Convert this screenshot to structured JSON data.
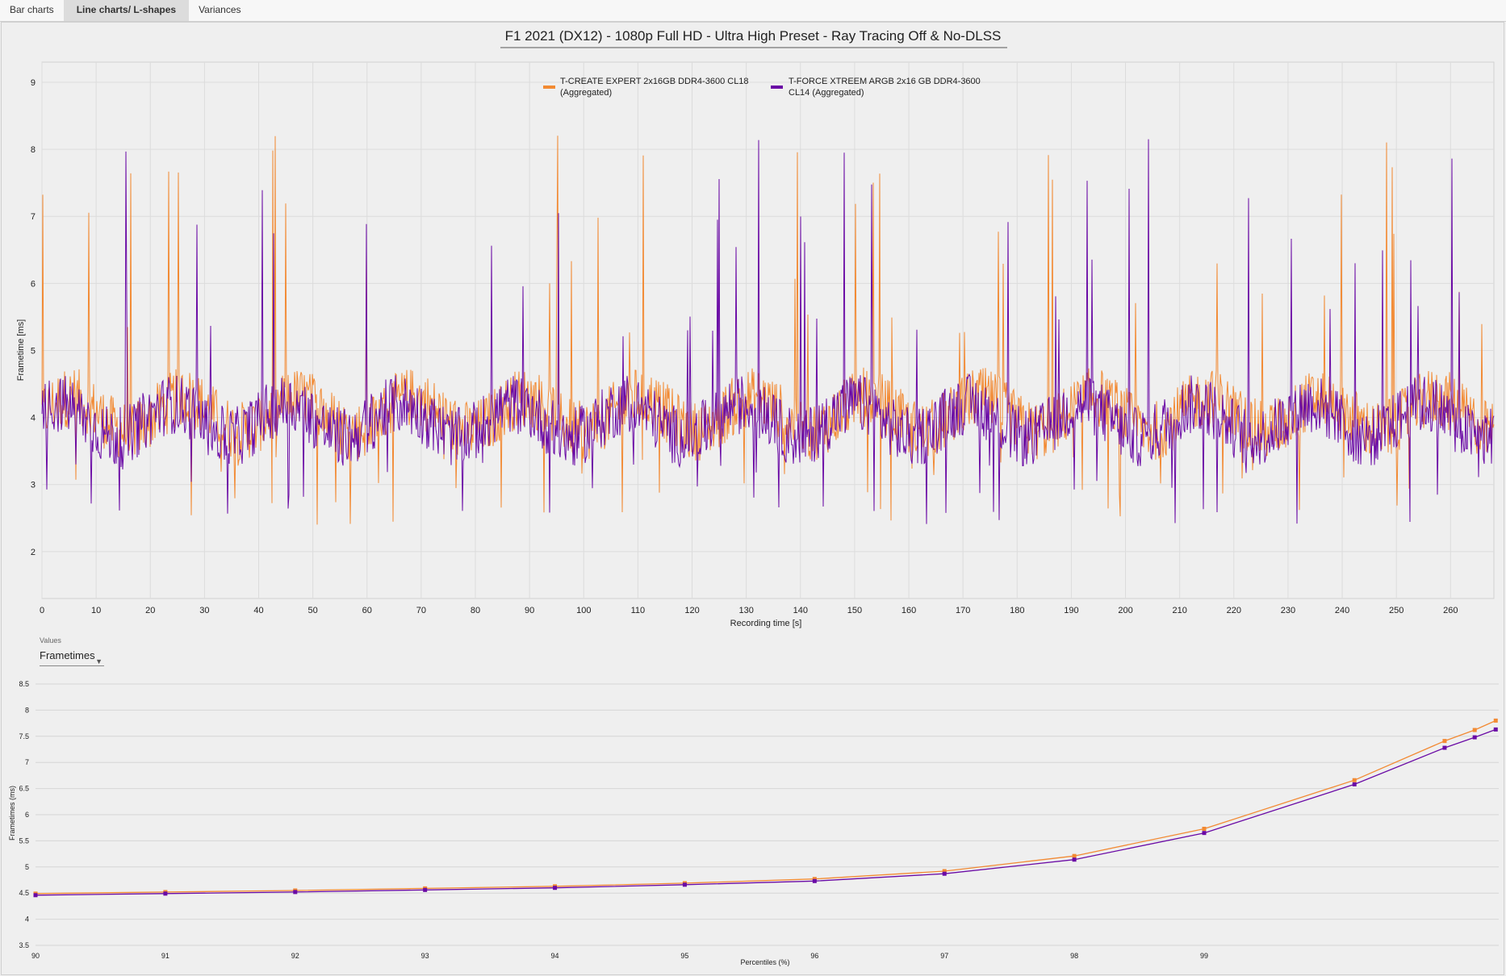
{
  "tabs": [
    {
      "label": "Bar charts",
      "active": false
    },
    {
      "label": "Line charts/ L-shapes",
      "active": true
    },
    {
      "label": "Variances",
      "active": false
    }
  ],
  "values_selector": {
    "label": "Values",
    "selected": "Frametimes"
  },
  "colors": {
    "series_a": "#f28a33",
    "series_b": "#6a0aa5",
    "grid": "#d9d9d9",
    "background": "#efefef"
  },
  "chart_data": [
    {
      "type": "line",
      "title": "F1 2021 (DX12) - 1080p Full HD - Ultra High Preset - Ray Tracing Off & No-DLSS",
      "xlabel": "Recording time [s]",
      "ylabel": "Frametime [ms]",
      "xlim": [
        0,
        268
      ],
      "ylim": [
        1.3,
        9.3
      ],
      "x_ticks": [
        0,
        10,
        20,
        30,
        40,
        50,
        60,
        70,
        80,
        90,
        100,
        110,
        120,
        130,
        140,
        150,
        160,
        170,
        180,
        190,
        200,
        210,
        220,
        230,
        240,
        250,
        260
      ],
      "y_ticks": [
        2,
        3,
        4,
        5,
        6,
        7,
        8,
        9
      ],
      "grid": true,
      "legend_position": "top-center",
      "series": [
        {
          "name": "T-CREATE EXPERT 2x16GB DDR4-3600 CL18 (Aggregated)",
          "color": "#f28a33",
          "baseline": 4.05,
          "spread": 0.45,
          "max": 8.3,
          "min": 2.4
        },
        {
          "name": "T-FORCE XTREEM ARGB 2x16 GB DDR4-3600 CL14 (Aggregated)",
          "color": "#6a0aa5",
          "baseline": 3.95,
          "spread": 0.45,
          "max": 8.2,
          "min": 2.35
        }
      ]
    },
    {
      "type": "line",
      "title": "",
      "xlabel": "Percentiles (%)",
      "ylabel": "Frametimes (ms)",
      "xlim": [
        90,
        99.98
      ],
      "ylim": [
        3.5,
        8.5
      ],
      "x_ticks": [
        90,
        91,
        92,
        93,
        94,
        95,
        96,
        97,
        98,
        99
      ],
      "y_ticks": [
        3.5,
        4,
        4.5,
        5,
        5.5,
        6,
        6.5,
        7,
        7.5,
        8,
        8.5
      ],
      "grid": true,
      "x": [
        90,
        91,
        92,
        93,
        94,
        95,
        96,
        97,
        98,
        99,
        99.5,
        99.8,
        99.9,
        99.97
      ],
      "series": [
        {
          "name": "T-CREATE EXPERT 2x16GB DDR4-3600 CL18 (Aggregated)",
          "color": "#f28a33",
          "values": [
            4.49,
            4.52,
            4.55,
            4.59,
            4.63,
            4.69,
            4.77,
            4.92,
            5.21,
            5.73,
            6.66,
            7.41,
            7.62,
            7.8
          ]
        },
        {
          "name": "T-FORCE XTREEM ARGB 2x16 GB DDR4-3600 CL14 (Aggregated)",
          "color": "#6a0aa5",
          "values": [
            4.46,
            4.49,
            4.52,
            4.56,
            4.6,
            4.66,
            4.73,
            4.87,
            5.14,
            5.65,
            6.58,
            7.28,
            7.48,
            7.63
          ]
        }
      ]
    }
  ]
}
